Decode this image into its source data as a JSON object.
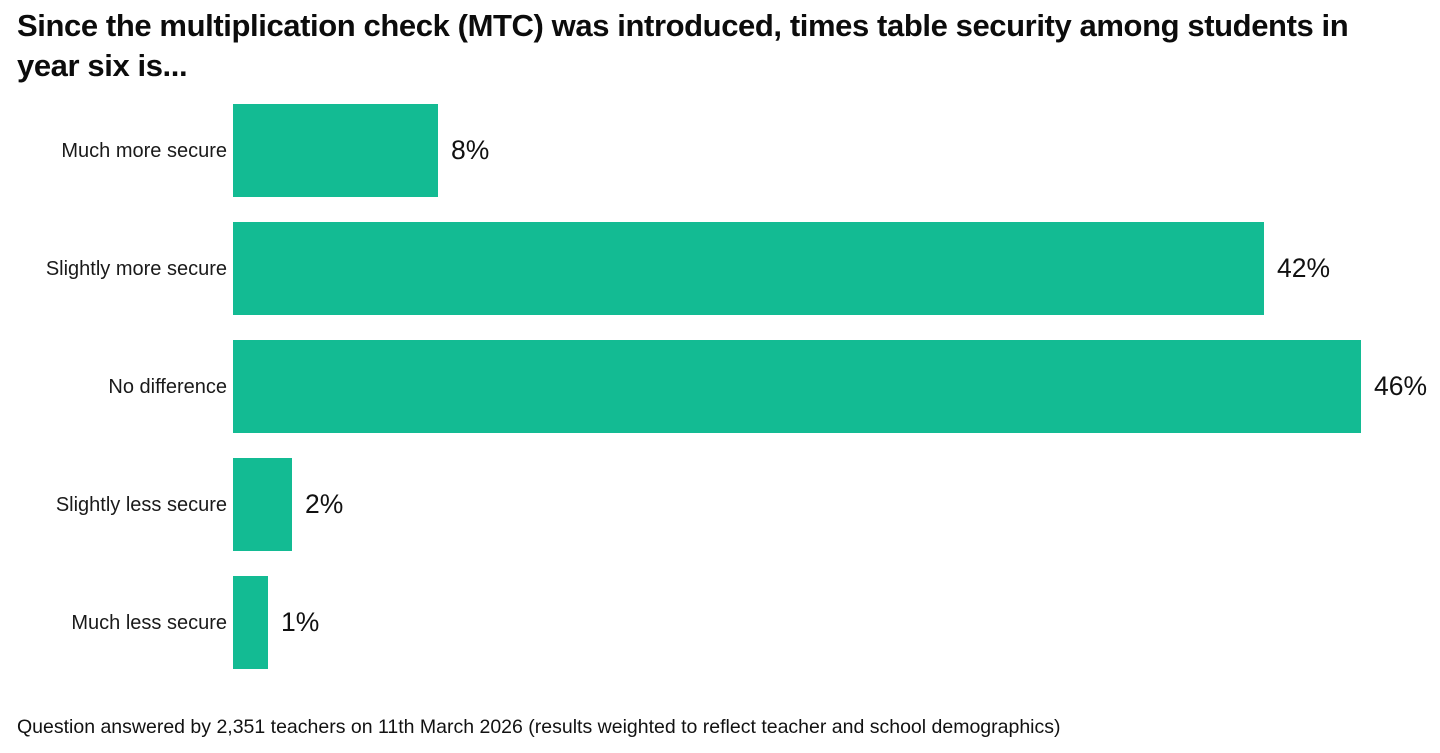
{
  "page": {
    "title": "Since the multiplication check (MTC) was introduced, times table security among students in year six is...",
    "footnote": "Question answered by 2,351 teachers on 11th March 2026 (results weighted to reflect teacher and school demographics)"
  },
  "chart_data": {
    "type": "bar",
    "orientation": "horizontal",
    "title": "Since the multiplication check (MTC) was introduced, times table security among students in year six is...",
    "categories": [
      "Much more secure",
      "Slightly more secure",
      "No difference",
      "Slightly less secure",
      "Much less secure"
    ],
    "values": [
      8,
      42,
      46,
      2,
      1
    ],
    "value_labels": [
      "8%",
      "42%",
      "46%",
      "2%",
      "1%"
    ],
    "xlabel": "",
    "ylabel": "",
    "xlim": [
      0,
      46
    ],
    "grid": false,
    "legend": false,
    "bar_color": "#13BB93",
    "text_color": "#111111",
    "background_color": "#FFFFFF",
    "annotation": "Question answered by 2,351 teachers on 11th March 2026 (results weighted to reflect teacher and school demographics)"
  }
}
